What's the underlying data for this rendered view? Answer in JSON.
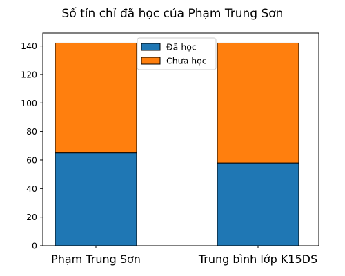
{
  "chart_data": {
    "type": "bar",
    "stacked": true,
    "title": "Số tín chỉ đã học của Phạm Trung Sơn",
    "xlabel": "",
    "ylabel": "",
    "categories": [
      "Phạm Trung Sơn",
      "Trung bình lớp K15DS"
    ],
    "series": [
      {
        "name": "Đã học",
        "values": [
          65,
          58
        ],
        "color": "#1f77b4"
      },
      {
        "name": "Chưa học",
        "values": [
          77,
          84
        ],
        "color": "#ff7f0e"
      }
    ],
    "ylim": [
      0,
      149
    ],
    "yticks": [
      0,
      20,
      40,
      60,
      80,
      100,
      120,
      140
    ],
    "legend": "top-center",
    "grid": false
  }
}
